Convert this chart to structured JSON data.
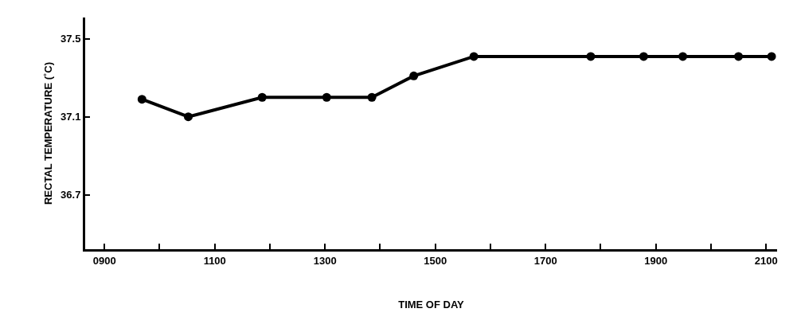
{
  "chart_data": {
    "type": "line",
    "xlabel": "TIME OF DAY",
    "ylabel": "RECTAL TEMPERATURE (˚C)",
    "x": [
      968,
      1052,
      1186,
      1303,
      1385,
      1461,
      1570,
      1782,
      1878,
      1949,
      2050,
      2110
    ],
    "series": [
      {
        "color": "#000000",
        "values": [
          37.19,
          37.1,
          37.2,
          37.2,
          37.2,
          37.31,
          37.41,
          37.41,
          37.41,
          37.41,
          37.41,
          37.41
        ]
      }
    ],
    "xlim": [
      865,
      2120
    ],
    "xticks": [
      {
        "value": 900,
        "label": "0900"
      },
      {
        "value": 1000,
        "label": null
      },
      1100,
      {
        "value": 1200,
        "label": null
      },
      1300,
      {
        "value": 1400,
        "label": null
      },
      1500,
      {
        "value": 1600,
        "label": null
      },
      1700,
      {
        "value": 1800,
        "label": null
      },
      1900,
      {
        "value": 2000,
        "label": null
      },
      2100
    ],
    "ylim": [
      36.42,
      37.61
    ],
    "yticks": [
      36.7,
      37.1,
      37.5
    ],
    "grid": false,
    "marker": "circle",
    "line_style": "solid"
  }
}
